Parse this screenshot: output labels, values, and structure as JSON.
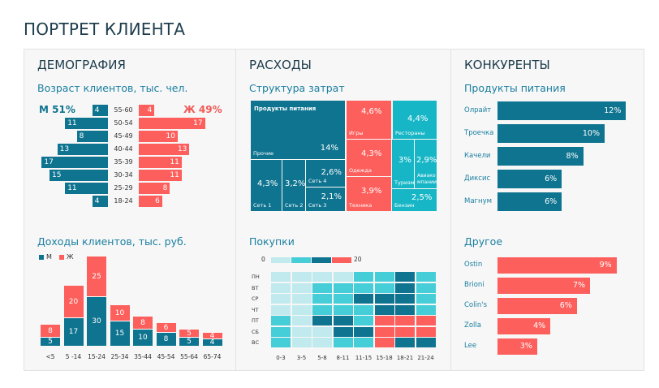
{
  "page": {
    "title": "ПОРТРЕТ КЛИЕНТА"
  },
  "colors": {
    "male": "#0f7490",
    "female": "#fd5f5c",
    "teal_light": "#c0eaee",
    "teal_mid": "#45cdd8",
    "teal_dark": "#0f7490",
    "red": "#fd5f5c",
    "cyan": "#17b6c6"
  },
  "demography": {
    "title": "ДЕМОГРАФИЯ",
    "age": {
      "title": "Возраст клиентов, тыс. чел.",
      "male_label": "М 51%",
      "female_label": "Ж 49%",
      "rows": [
        {
          "age": "55-60",
          "male": 4,
          "female": 4
        },
        {
          "age": "50-54",
          "male": 11,
          "female": 17
        },
        {
          "age": "45-49",
          "male": 8,
          "female": 10
        },
        {
          "age": "40-44",
          "male": 13,
          "female": 13
        },
        {
          "age": "35-39",
          "male": 17,
          "female": 11
        },
        {
          "age": "30-34",
          "male": 15,
          "female": 11
        },
        {
          "age": "25-29",
          "male": 11,
          "female": 8
        },
        {
          "age": "18-24",
          "male": 4,
          "female": 6
        }
      ]
    },
    "income": {
      "title": "Доходы клиентов, тыс. руб.",
      "legend": [
        {
          "label": "М"
        },
        {
          "label": "Ж"
        }
      ],
      "categories": [
        "<5",
        "5 -14",
        "15-24",
        "25-34",
        "35-44",
        "45-54",
        "55-64",
        "65-74"
      ],
      "male": [
        5,
        17,
        30,
        15,
        10,
        8,
        5,
        4
      ],
      "female": [
        8,
        20,
        25,
        10,
        8,
        6,
        5,
        4
      ]
    }
  },
  "expenses": {
    "title": "РАСХОДЫ",
    "structure": {
      "title": "Структура затрат",
      "group_title": "Продукты питания",
      "items": [
        {
          "name": "Прочие",
          "value": "14%"
        },
        {
          "name": "Сеть 1",
          "value": "4,3%"
        },
        {
          "name": "Сеть 2",
          "value": "3,2%"
        },
        {
          "name": "Сеть 4",
          "value": "2,6%"
        },
        {
          "name": "Сеть 3",
          "value": "2,1%"
        },
        {
          "name": "Игры",
          "value": "4,6%"
        },
        {
          "name": "Одежда",
          "value": "4,3%"
        },
        {
          "name": "Техника",
          "value": "3,9%"
        },
        {
          "name": "Рестораны",
          "value": "4,4%"
        },
        {
          "name": "Туризм",
          "value": "3%"
        },
        {
          "name": "Авиако мпании",
          "value": "2,9%"
        },
        {
          "name": "Бензин",
          "value": "2,5%"
        }
      ]
    },
    "purchases": {
      "title": "Покупки",
      "legend_min": "0",
      "legend_max": "20",
      "days": [
        "ПН",
        "ВТ",
        "СР",
        "ЧТ",
        "ПТ",
        "СБ",
        "ВС"
      ],
      "hours": [
        "0-3",
        "3-5",
        "5-8",
        "8-11",
        "11-15",
        "15-18",
        "18-21",
        "21-24"
      ],
      "levels": [
        [
          0,
          0,
          0,
          0,
          1,
          1,
          2,
          1
        ],
        [
          0,
          0,
          1,
          1,
          1,
          1,
          2,
          1
        ],
        [
          0,
          0,
          1,
          1,
          2,
          2,
          2,
          1
        ],
        [
          0,
          0,
          1,
          1,
          1,
          2,
          2,
          1
        ],
        [
          1,
          0,
          2,
          2,
          1,
          3,
          3,
          3
        ],
        [
          1,
          0,
          0,
          2,
          2,
          3,
          3,
          3
        ],
        [
          1,
          0,
          0,
          1,
          1,
          3,
          2,
          2
        ]
      ]
    }
  },
  "competitors": {
    "title": "КОНКУРЕНТЫ",
    "food": {
      "title": "Продукты питания",
      "items": [
        {
          "name": "Олрайт",
          "value": 12,
          "label": "12%"
        },
        {
          "name": "Троечка",
          "value": 10,
          "label": "10%"
        },
        {
          "name": "Качели",
          "value": 8,
          "label": "8%"
        },
        {
          "name": "Диксис",
          "value": 6,
          "label": "6%"
        },
        {
          "name": "Магнум",
          "value": 6,
          "label": "6%"
        }
      ]
    },
    "other": {
      "title": "Другое",
      "items": [
        {
          "name": "Ostin",
          "value": 9,
          "label": "9%"
        },
        {
          "name": "Brioni",
          "value": 7,
          "label": "7%"
        },
        {
          "name": "Colin's",
          "value": 6,
          "label": "6%"
        },
        {
          "name": "Zolla",
          "value": 4,
          "label": "4%"
        },
        {
          "name": "Lee",
          "value": 3,
          "label": "3%"
        }
      ]
    }
  }
}
